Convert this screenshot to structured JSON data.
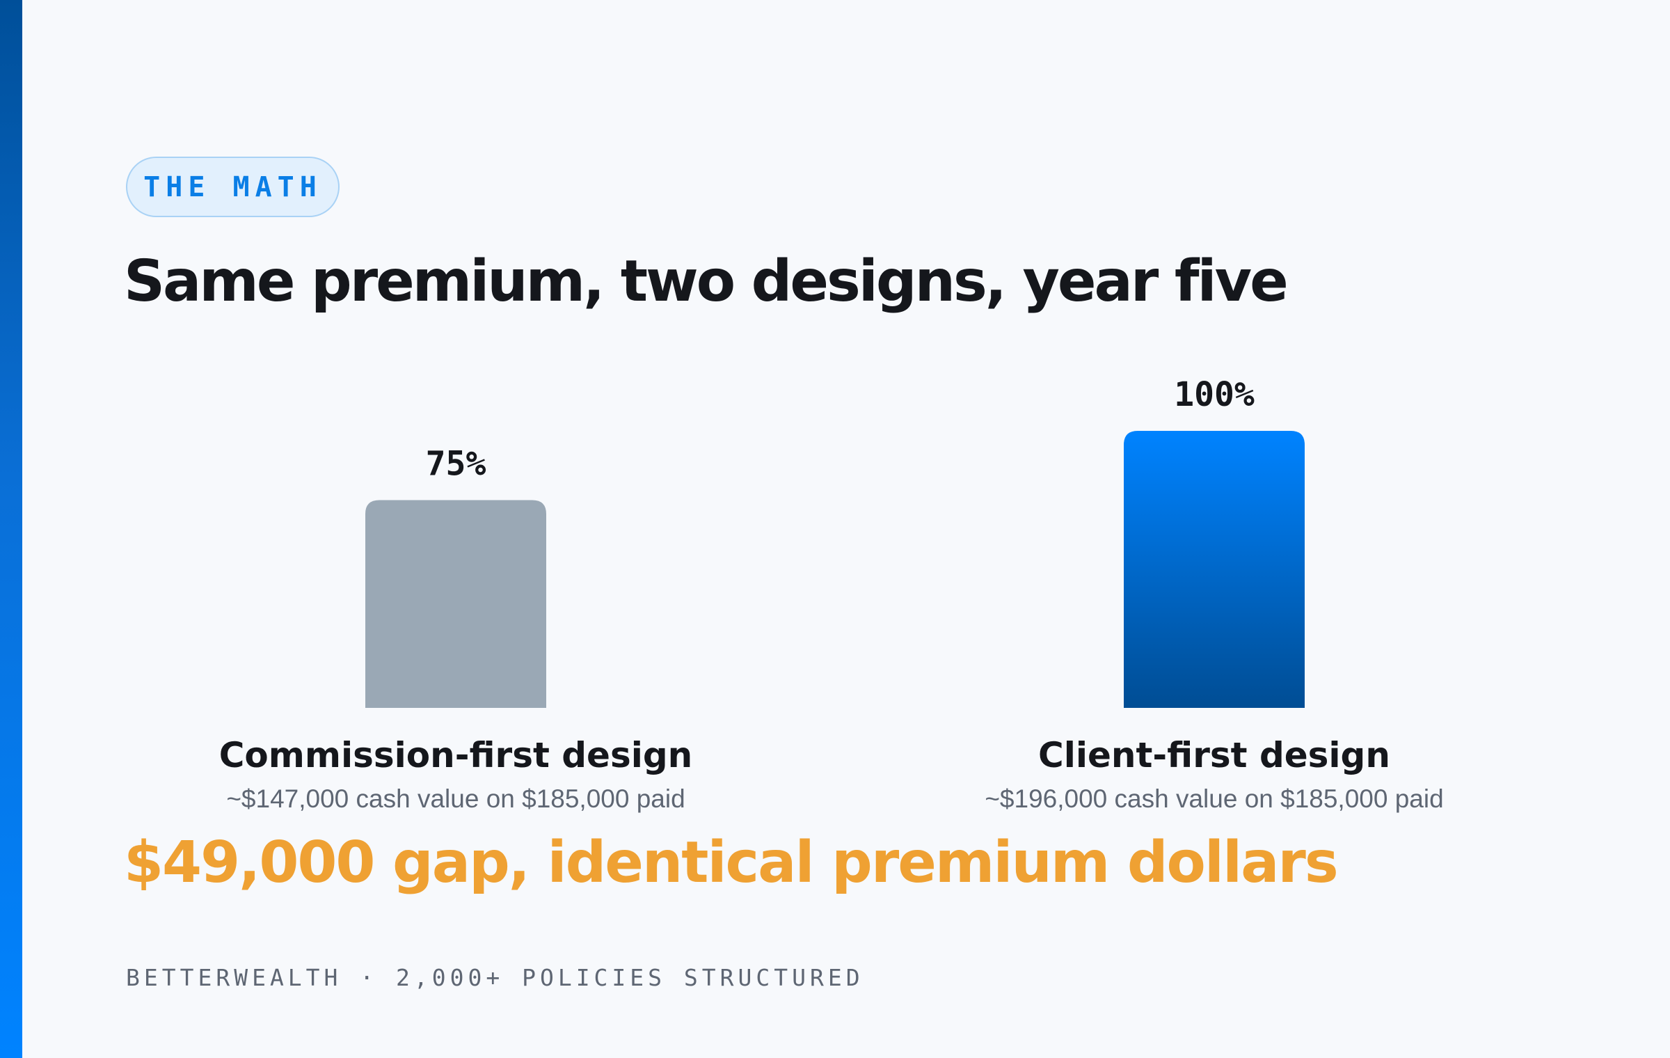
{
  "badge": {
    "text": "THE MATH"
  },
  "title": "Same premium, two designs, year five",
  "chart_data": {
    "type": "bar",
    "categories": [
      "Commission-first design",
      "Client-first design"
    ],
    "values": [
      75,
      100
    ],
    "value_labels": [
      "75%",
      "100%"
    ],
    "subtitles": [
      "~$147,000 cash value on $185,000 paid",
      "~$196,000 cash value on $185,000 paid"
    ],
    "ylim": [
      0,
      100
    ],
    "grid": false,
    "colors": [
      "#9aa8b5",
      "#0a7ee6"
    ]
  },
  "gap_text": "$49,000 gap, identical premium dollars",
  "footer": "BETTERWEALTH · 2,000+ POLICIES STRUCTURED",
  "colors": {
    "accent": "#0a7ee6",
    "highlight": "#efa133",
    "background": "#f7f9fc"
  }
}
